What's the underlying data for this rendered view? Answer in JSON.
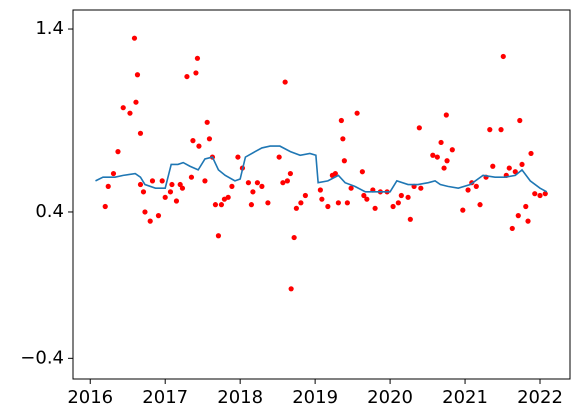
{
  "chart_data": {
    "type": "scatter",
    "xlim": [
      2015.77,
      2022.4
    ],
    "xticks": [
      2016,
      2017,
      2018,
      2019,
      2020,
      2021,
      2022
    ],
    "ylim": [
      -0.513,
      1.504
    ],
    "yticks": [
      {
        "value": -0.4,
        "label": "−0.4"
      },
      0.4,
      1.4
    ],
    "series": [
      {
        "type": "scatter",
        "color": "#ff0000",
        "x": [
          2016.2,
          2016.24,
          2016.31,
          2016.37,
          2016.44,
          2016.53,
          2016.59,
          2016.61,
          2016.63,
          2016.67,
          2016.67,
          2016.71,
          2016.73,
          2016.8,
          2016.83,
          2016.91,
          2016.96,
          2017.0,
          2017.07,
          2017.09,
          2017.15,
          2017.2,
          2017.23,
          2017.29,
          2017.35,
          2017.37,
          2017.41,
          2017.43,
          2017.45,
          2017.53,
          2017.56,
          2017.59,
          2017.63,
          2017.67,
          2017.71,
          2017.75,
          2017.79,
          2017.84,
          2017.89,
          2017.97,
          2018.03,
          2018.11,
          2018.15,
          2018.17,
          2018.23,
          2018.29,
          2018.37,
          2018.52,
          2018.57,
          2018.6,
          2018.63,
          2018.67,
          2018.68,
          2018.72,
          2018.75,
          2018.81,
          2018.87,
          2019.07,
          2019.09,
          2019.17,
          2019.23,
          2019.27,
          2019.31,
          2019.35,
          2019.37,
          2019.39,
          2019.43,
          2019.48,
          2019.56,
          2019.63,
          2019.65,
          2019.69,
          2019.77,
          2019.8,
          2019.87,
          2019.96,
          2020.04,
          2020.11,
          2020.15,
          2020.24,
          2020.27,
          2020.32,
          2020.39,
          2020.41,
          2020.57,
          2020.63,
          2020.68,
          2020.72,
          2020.75,
          2020.76,
          2020.83,
          2020.97,
          2021.04,
          2021.09,
          2021.15,
          2021.2,
          2021.28,
          2021.33,
          2021.37,
          2021.48,
          2021.51,
          2021.55,
          2021.59,
          2021.63,
          2021.67,
          2021.71,
          2021.73,
          2021.76,
          2021.81,
          2021.84,
          2021.88,
          2021.93,
          2022.0,
          2022.07
        ],
        "values": [
          0.43,
          0.54,
          0.61,
          0.73,
          0.97,
          0.94,
          1.35,
          1.0,
          1.15,
          0.83,
          0.55,
          0.51,
          0.4,
          0.35,
          0.57,
          0.38,
          0.57,
          0.48,
          0.51,
          0.55,
          0.46,
          0.55,
          0.53,
          1.14,
          0.59,
          0.79,
          1.16,
          1.24,
          0.76,
          0.57,
          0.89,
          0.8,
          0.7,
          0.44,
          0.27,
          0.44,
          0.47,
          0.48,
          0.54,
          0.7,
          0.64,
          0.56,
          0.44,
          0.51,
          0.56,
          0.54,
          0.45,
          0.7,
          0.56,
          1.11,
          0.57,
          0.61,
          -0.02,
          0.26,
          0.42,
          0.45,
          0.49,
          0.52,
          0.47,
          0.43,
          0.6,
          0.61,
          0.45,
          0.9,
          0.8,
          0.68,
          0.45,
          0.53,
          0.94,
          0.62,
          0.49,
          0.47,
          0.52,
          0.42,
          0.51,
          0.51,
          0.43,
          0.45,
          0.49,
          0.48,
          0.36,
          0.54,
          0.86,
          0.53,
          0.71,
          0.7,
          0.78,
          0.64,
          0.93,
          0.68,
          0.74,
          0.41,
          0.52,
          0.56,
          0.54,
          0.44,
          0.59,
          0.85,
          0.65,
          0.85,
          1.25,
          0.6,
          0.64,
          0.31,
          0.62,
          0.38,
          0.9,
          0.66,
          0.43,
          0.35,
          0.72,
          0.5,
          0.49,
          0.5
        ]
      },
      {
        "type": "line",
        "color": "#1f77b4",
        "x": [
          2016.07,
          2016.17,
          2016.33,
          2016.44,
          2016.6,
          2016.67,
          2016.73,
          2016.87,
          2017.0,
          2017.08,
          2017.17,
          2017.24,
          2017.33,
          2017.44,
          2017.53,
          2017.63,
          2017.71,
          2017.8,
          2017.93,
          2018.0,
          2018.07,
          2018.2,
          2018.29,
          2018.4,
          2018.53,
          2018.67,
          2018.8,
          2018.93,
          2019.01,
          2019.04,
          2019.17,
          2019.31,
          2019.4,
          2019.53,
          2019.67,
          2019.84,
          2020.0,
          2020.09,
          2020.24,
          2020.37,
          2020.51,
          2020.6,
          2020.67,
          2020.77,
          2020.91,
          2021.07,
          2021.24,
          2021.4,
          2021.53,
          2021.67,
          2021.76,
          2021.87,
          2022.0,
          2022.09
        ],
        "values": [
          0.57,
          0.59,
          0.59,
          0.6,
          0.61,
          0.59,
          0.55,
          0.53,
          0.53,
          0.66,
          0.66,
          0.67,
          0.65,
          0.63,
          0.69,
          0.7,
          0.63,
          0.6,
          0.57,
          0.58,
          0.7,
          0.73,
          0.75,
          0.76,
          0.76,
          0.73,
          0.71,
          0.72,
          0.71,
          0.56,
          0.57,
          0.6,
          0.56,
          0.54,
          0.51,
          0.51,
          0.51,
          0.57,
          0.55,
          0.55,
          0.56,
          0.57,
          0.55,
          0.54,
          0.53,
          0.55,
          0.6,
          0.59,
          0.59,
          0.6,
          0.63,
          0.57,
          0.53,
          0.51
        ]
      }
    ]
  }
}
